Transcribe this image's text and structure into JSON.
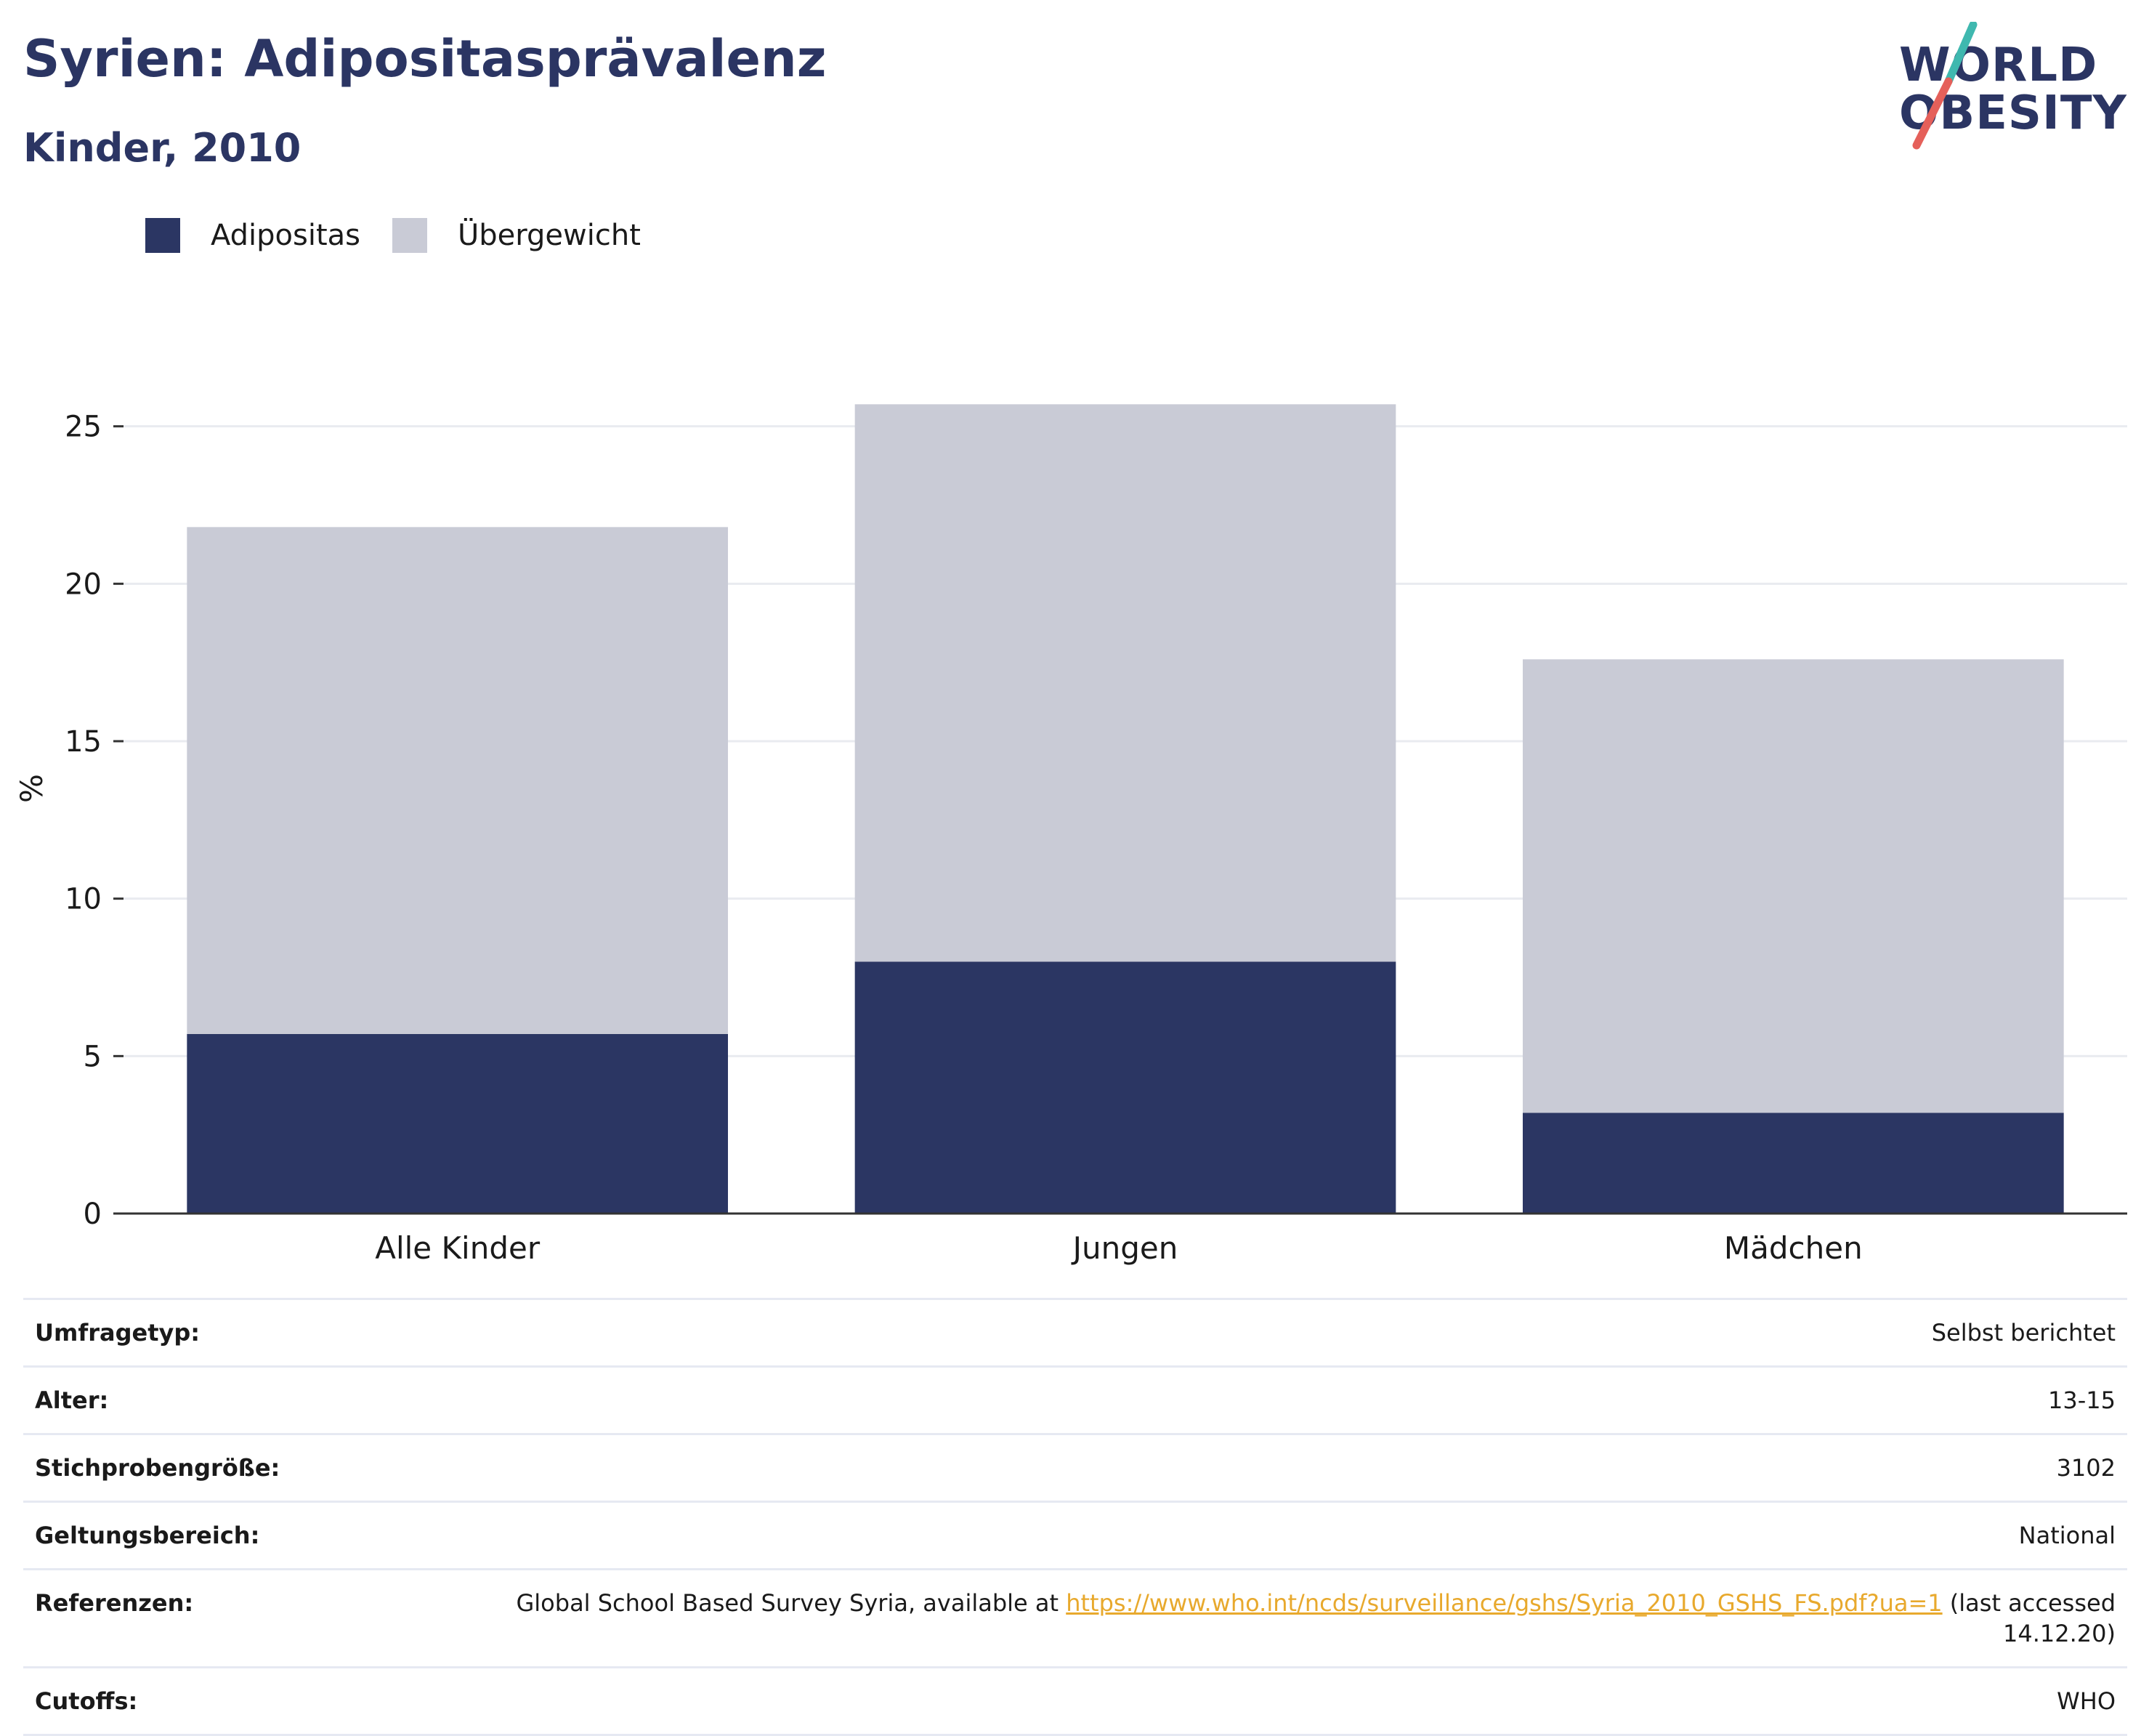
{
  "header": {
    "title": "Syrien: Adipositasprävalenz",
    "subtitle": "Kinder, 2010"
  },
  "logo": {
    "line1": "WORLD",
    "line2": "OBESITY",
    "accent_teal": "#3fb8af",
    "accent_red": "#e5605a"
  },
  "legend": [
    {
      "label": "Adipositas",
      "color": "#2b3663"
    },
    {
      "label": "Übergewicht",
      "color": "#c9cbd6"
    }
  ],
  "chart_data": {
    "type": "bar",
    "stacked": true,
    "categories": [
      "Alle Kinder",
      "Jungen",
      "Mädchen"
    ],
    "series": [
      {
        "name": "Adipositas",
        "values": [
          5.7,
          8.0,
          3.2
        ],
        "color": "#2b3663"
      },
      {
        "name": "Übergewicht",
        "values": [
          16.1,
          17.7,
          14.4
        ],
        "color": "#c9cbd6"
      }
    ],
    "ylabel": "%",
    "ylim": [
      0,
      27
    ],
    "yticks": [
      0,
      5,
      10,
      15,
      20,
      25
    ],
    "grid": true,
    "legend_position": "top-left"
  },
  "meta": {
    "rows": [
      {
        "key": "Umfragetyp:",
        "value": "Selbst berichtet"
      },
      {
        "key": "Alter:",
        "value": "13-15"
      },
      {
        "key": "Stichprobengröße:",
        "value": "3102"
      },
      {
        "key": "Geltungsbereich:",
        "value": "National"
      }
    ],
    "references": {
      "key": "Referenzen:",
      "prefix": "Global School Based Survey Syria, available at",
      "link": "https://www.who.int/ncds/surveillance/gshs/Syria_2010_GSHS_FS.pdf?ua=1",
      "suffix": "(last accessed 14.12.20)"
    },
    "cutoffs": {
      "key": "Cutoffs:",
      "value": "WHO"
    }
  }
}
